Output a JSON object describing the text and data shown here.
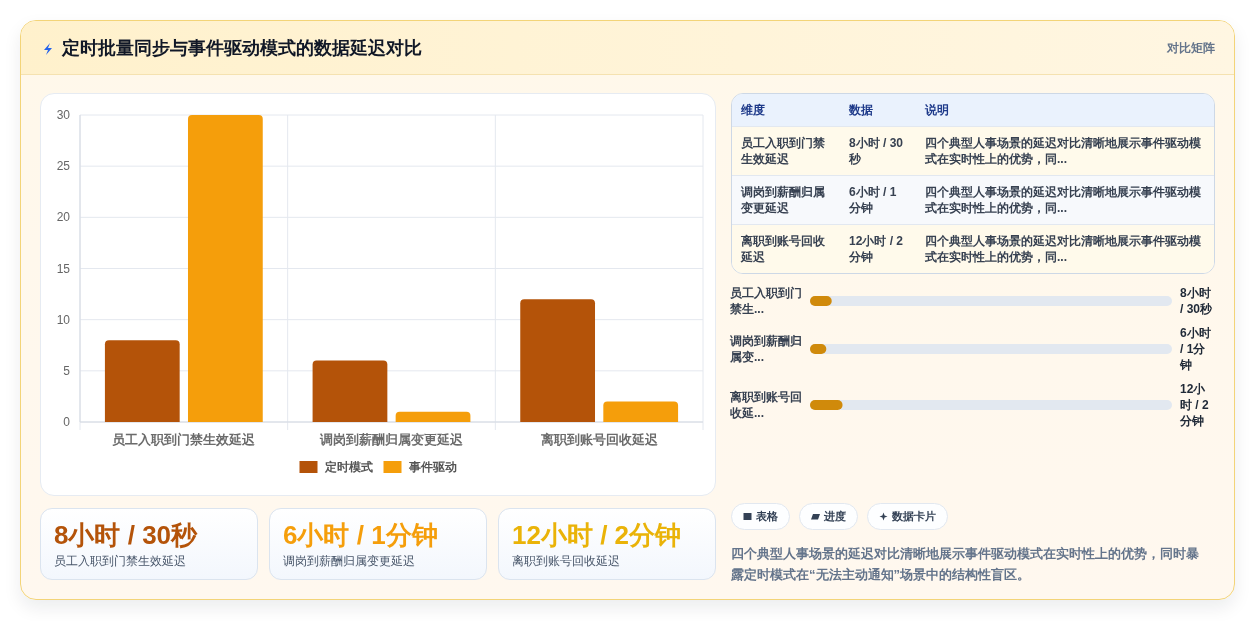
{
  "chart_data": [
    {
      "type": "other",
      "title": "定时批量同步与事件驱动模式的数据延迟对比",
      "annotations": [
        "对比矩阵"
      ]
    },
    {
      "type": "bar",
      "categories": [
        "员工入职到门禁生效延迟",
        "调岗到薪酬归属变更延迟",
        "离职到账号回收延迟"
      ],
      "series": [
        {
          "name": "定时模式",
          "color": "#b45309",
          "values": [
            8,
            6,
            12
          ]
        },
        {
          "name": "事件驱动",
          "color": "#f59e0b",
          "values": [
            30,
            1,
            2
          ]
        }
      ],
      "ylim": [
        0,
        30
      ],
      "yticks": [
        0,
        5,
        10,
        15,
        20,
        25,
        30
      ],
      "grid": true,
      "legend": "bottom"
    },
    {
      "type": "other",
      "annotations": [
        "维度",
        "数据",
        "说明",
        "员工入职到门禁生效延迟",
        "8小时 / 30秒",
        "四个典型人事场景的延迟对比清晰地展示事件驱动模式在实时性上的优势，同...",
        "调岗到薪酬归属变更延迟",
        "6小时 / 1分钟",
        "四个典型人事场景的延迟对比清晰地展示事件驱动模式在实时性上的优势，同...",
        "离职到账号回收延迟",
        "12小时 / 2分钟",
        "四个典型人事场景的延迟对比清晰地展示事件驱动模式在实时性上的优势，同..."
      ]
    },
    {
      "type": "bar",
      "orientation": "horizontal",
      "categories": [
        "员工入职到门禁生...",
        "调岗到薪酬归属变...",
        "离职到账号回收延..."
      ],
      "values": [
        8,
        6,
        12
      ],
      "value_labels": [
        "8小时 / 30秒",
        "6小时 / 1分钟",
        "12小时 / 2分钟"
      ],
      "color": "#d08a0b"
    },
    {
      "type": "other",
      "title": "8小时 / 30秒",
      "subtitle": "员工入职到门禁生效延迟",
      "color": "#b45309"
    },
    {
      "type": "other",
      "title": "6小时 / 1分钟",
      "subtitle": "调岗到薪酬归属变更延迟",
      "color": "#f59e0b"
    },
    {
      "type": "other",
      "title": "12小时 / 2分钟",
      "subtitle": "离职到账号回收延迟",
      "color": "#eab308"
    },
    {
      "type": "other",
      "annotations": [
        "表格",
        "进度",
        "数据卡片",
        "四个典型人事场景的延迟对比清晰地展示事件驱动模式在实时性上的优势，同时暴露定时模式在“无法主动通知”场景中的结构性盲区。"
      ]
    }
  ]
}
